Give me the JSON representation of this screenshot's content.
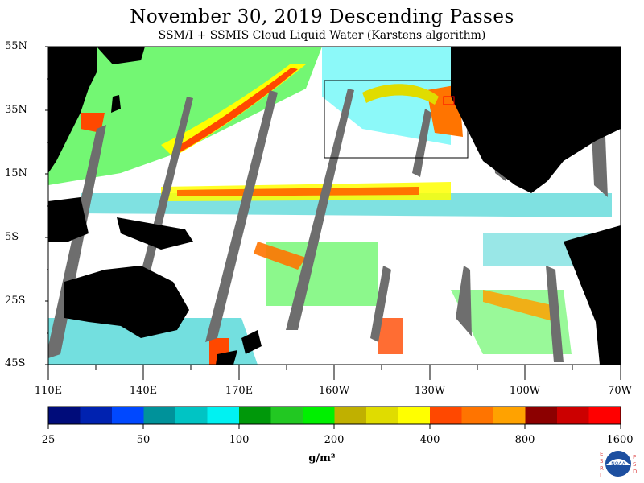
{
  "title": "November 30, 2019  Descending Passes",
  "subtitle": "SSM/I + SSMIS Cloud Liquid Water (Karstens algorithm)",
  "latitude_labels": [
    "55N",
    "35N",
    "15N",
    "5S",
    "25S",
    "45S"
  ],
  "longitude_labels": [
    "110E",
    "140E",
    "170E",
    "160W",
    "130W",
    "100W",
    "70W"
  ],
  "colorbar": {
    "colors": [
      "#000c7a",
      "#0022b0",
      "#0048ff",
      "#00929a",
      "#00c4c4",
      "#00f2f2",
      "#00980a",
      "#22c822",
      "#00f000",
      "#c0b000",
      "#e0dc00",
      "#ffff00",
      "#ff4800",
      "#ff7400",
      "#ffa200",
      "#8c0000",
      "#cc0000",
      "#ff0000"
    ],
    "tick_labels": [
      "25",
      "50",
      "100",
      "200",
      "400",
      "800",
      "1600"
    ],
    "units": "g/m²"
  },
  "logo": {
    "left_letters": [
      "E",
      "S",
      "R",
      "L"
    ],
    "right_letters": [
      "P",
      "S",
      "D"
    ],
    "center_text": "NOAA"
  },
  "map_colors": {
    "land": "#000000",
    "no_data_swath_gap": "#6e6e6e",
    "clear": "#ffffff"
  }
}
